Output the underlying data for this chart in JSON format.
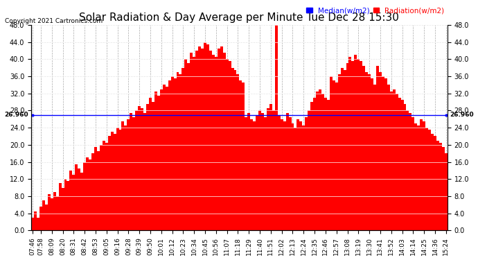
{
  "title": "Solar Radiation & Day Average per Minute Tue Dec 28 15:30",
  "copyright": "Copyright 2021 Cartronics.com",
  "median_label": "Median(w/m2)",
  "radiation_label": "Radiation(w/m2)",
  "median_value": 26.96,
  "ylim": [
    0,
    48.0
  ],
  "yticks": [
    0.0,
    4.0,
    8.0,
    12.0,
    16.0,
    20.0,
    24.0,
    28.0,
    32.0,
    36.0,
    40.0,
    44.0,
    48.0
  ],
  "bar_color": "#FF0000",
  "median_color": "#0000FF",
  "median_label_color": "#0000FF",
  "radiation_label_color": "#FF0000",
  "background_color": "#FFFFFF",
  "grid_color": "#AAAAAA",
  "title_fontsize": 11,
  "tick_fontsize": 7,
  "x_labels": [
    "07:46",
    "07:58",
    "08:09",
    "08:20",
    "08:31",
    "08:42",
    "08:53",
    "09:05",
    "09:16",
    "09:28",
    "09:39",
    "09:50",
    "10:01",
    "10:12",
    "10:23",
    "10:34",
    "10:45",
    "10:56",
    "11:07",
    "11:18",
    "11:29",
    "11:40",
    "11:51",
    "12:02",
    "12:13",
    "12:24",
    "12:35",
    "12:46",
    "12:57",
    "13:08",
    "13:19",
    "13:30",
    "13:41",
    "13:52",
    "14:03",
    "14:14",
    "14:25",
    "14:36",
    "15:24"
  ],
  "radiation_values": [
    3.0,
    4.5,
    3.0,
    5.5,
    7.0,
    6.0,
    8.5,
    7.5,
    9.0,
    8.0,
    11.0,
    10.0,
    12.0,
    11.5,
    14.0,
    13.0,
    15.5,
    14.5,
    13.5,
    16.0,
    17.0,
    16.5,
    18.0,
    19.5,
    18.5,
    20.0,
    21.0,
    20.5,
    22.0,
    23.0,
    22.5,
    24.0,
    23.5,
    25.5,
    24.5,
    26.0,
    27.5,
    26.5,
    28.0,
    29.0,
    28.5,
    27.5,
    29.5,
    31.0,
    30.0,
    32.5,
    31.5,
    33.0,
    34.0,
    33.5,
    35.0,
    36.0,
    35.5,
    37.0,
    36.5,
    38.0,
    40.0,
    39.0,
    41.5,
    40.5,
    42.0,
    43.0,
    42.5,
    44.0,
    43.5,
    42.0,
    41.0,
    40.5,
    42.5,
    43.0,
    41.5,
    40.0,
    39.5,
    38.0,
    37.5,
    36.5,
    35.0,
    34.5,
    26.5,
    27.5,
    26.0,
    25.5,
    27.0,
    28.0,
    27.5,
    26.5,
    28.5,
    29.5,
    28.0,
    48.0,
    27.0,
    26.0,
    25.5,
    27.5,
    26.5,
    25.0,
    24.0,
    26.0,
    25.5,
    24.5,
    26.5,
    28.0,
    30.0,
    31.0,
    32.5,
    33.0,
    32.0,
    31.0,
    30.5,
    36.0,
    35.0,
    34.5,
    36.5,
    38.0,
    37.5,
    39.0,
    40.5,
    39.5,
    41.0,
    40.0,
    39.5,
    38.5,
    37.0,
    36.5,
    35.5,
    34.0,
    38.5,
    37.0,
    36.0,
    35.5,
    34.0,
    32.5,
    33.0,
    32.0,
    31.0,
    30.5,
    29.5,
    28.0,
    27.5,
    26.5,
    25.0,
    24.5,
    26.0,
    25.5,
    24.0,
    23.5,
    22.5,
    22.0,
    21.0,
    20.5,
    19.5,
    18.0
  ]
}
